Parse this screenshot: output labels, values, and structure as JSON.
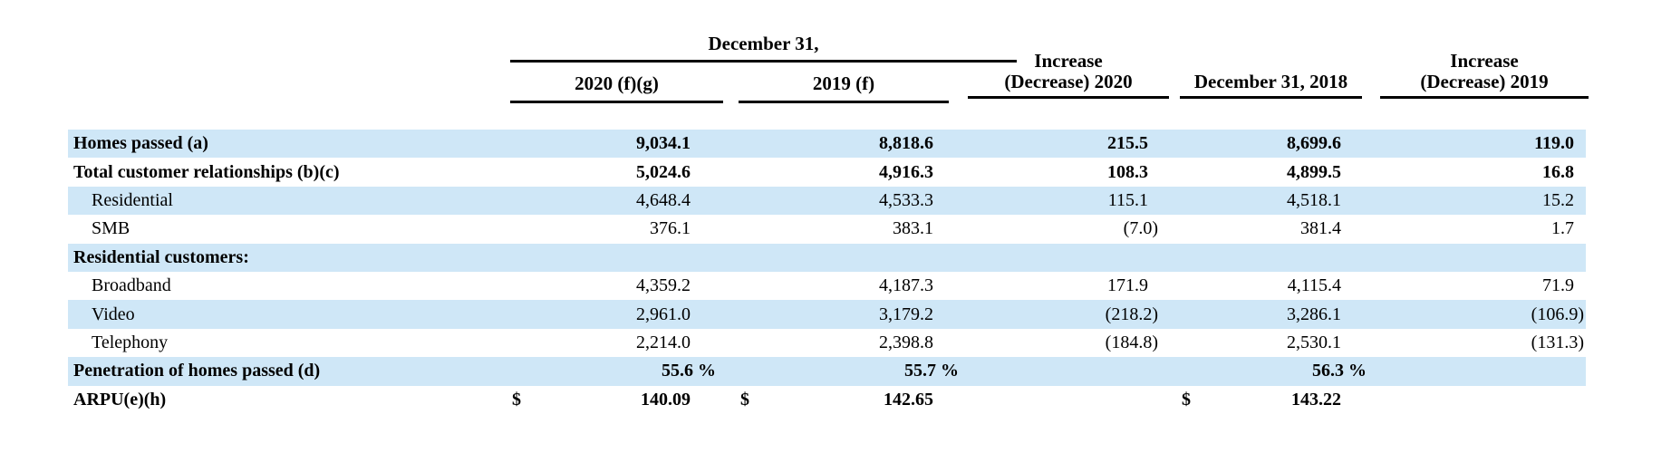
{
  "colors": {
    "row_shade": "#cfe7f7",
    "text": "#000000",
    "rule": "#000000"
  },
  "table": {
    "header": {
      "group_title": "December 31,",
      "col_2020": "2020 (f)(g)",
      "col_2019": "2019 (f)",
      "col_inc_2020_line1": "Increase",
      "col_inc_2020_line2": "(Decrease) 2020",
      "col_2018": "December 31, 2018",
      "col_inc_2019_line1": "Increase",
      "col_inc_2019_line2": "(Decrease) 2019"
    },
    "rows": [
      {
        "label": "Homes passed (a)",
        "bold": true,
        "indent": false,
        "shaded": true,
        "v2020": "9,034.1",
        "v2019": "8,818.6",
        "inc2020": "215.5",
        "v2018": "8,699.6",
        "inc2019": "119.0"
      },
      {
        "label": "Total customer relationships (b)(c)",
        "bold": true,
        "indent": false,
        "shaded": false,
        "v2020": "5,024.6",
        "v2019": "4,916.3",
        "inc2020": "108.3",
        "v2018": "4,899.5",
        "inc2019": "16.8"
      },
      {
        "label": "Residential",
        "bold": false,
        "indent": true,
        "shaded": true,
        "v2020": "4,648.4",
        "v2019": "4,533.3",
        "inc2020": "115.1",
        "v2018": "4,518.1",
        "inc2019": "15.2"
      },
      {
        "label": "SMB",
        "bold": false,
        "indent": true,
        "shaded": false,
        "v2020": "376.1",
        "v2019": "383.1",
        "inc2020": "(7.0)",
        "v2018": "381.4",
        "inc2019": "1.7"
      },
      {
        "label": "Residential customers:",
        "bold": true,
        "indent": false,
        "shaded": true,
        "v2020": "",
        "v2019": "",
        "inc2020": "",
        "v2018": "",
        "inc2019": ""
      },
      {
        "label": "Broadband",
        "bold": false,
        "indent": true,
        "shaded": false,
        "v2020": "4,359.2",
        "v2019": "4,187.3",
        "inc2020": "171.9",
        "v2018": "4,115.4",
        "inc2019": "71.9"
      },
      {
        "label": "Video",
        "bold": false,
        "indent": true,
        "shaded": true,
        "v2020": "2,961.0",
        "v2019": "3,179.2",
        "inc2020": "(218.2)",
        "v2018": "3,286.1",
        "inc2019": "(106.9)"
      },
      {
        "label": "Telephony",
        "bold": false,
        "indent": true,
        "shaded": false,
        "v2020": "2,214.0",
        "v2019": "2,398.8",
        "inc2020": "(184.8)",
        "v2018": "2,530.1",
        "inc2019": "(131.3)"
      },
      {
        "label": "Penetration of homes passed (d)",
        "bold": true,
        "indent": false,
        "shaded": true,
        "v2020": "55.6 %",
        "v2019": "55.7 %",
        "inc2020": "",
        "v2018": "56.3 %",
        "inc2019": ""
      },
      {
        "label": "ARPU(e)(h)",
        "bold": true,
        "indent": false,
        "shaded": false,
        "cur2020": "$",
        "v2020": "140.09",
        "cur2019": "$",
        "v2019": "142.65",
        "inc2020": "",
        "cur2018": "$",
        "v2018": "143.22",
        "inc2019": ""
      }
    ]
  }
}
